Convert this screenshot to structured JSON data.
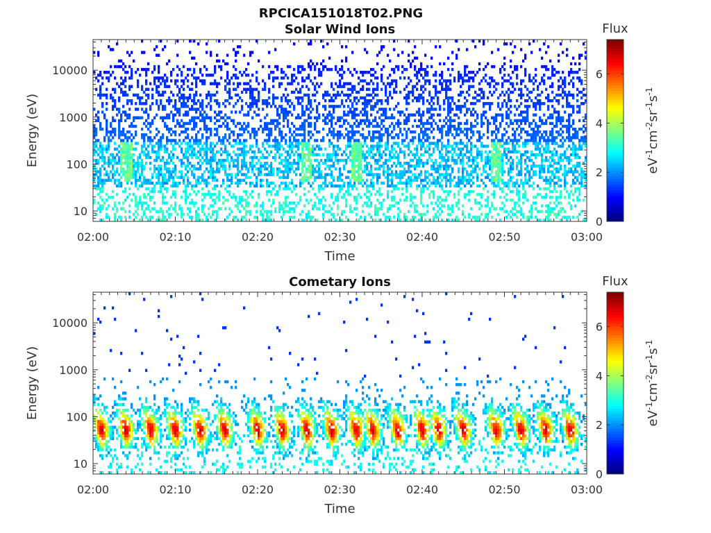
{
  "figure_title": "RPCICA151018T02.PNG",
  "chart_data": [
    {
      "type": "heatmap",
      "title": "Solar Wind Ions",
      "xlabel": "Time",
      "ylabel": "Energy (eV)",
      "x_ticks": [
        "02:00",
        "02:10",
        "02:20",
        "02:30",
        "02:40",
        "02:50",
        "03:00"
      ],
      "x_range": [
        "02:00",
        "03:00"
      ],
      "y_scale": "log",
      "y_ticks": [
        "10",
        "100",
        "1000",
        "10000"
      ],
      "y_range": [
        6,
        45000
      ],
      "colorbar": {
        "label": "Flux",
        "unit": "eV-1cm-2sr-1s-1",
        "unit_parts": [
          "eV",
          "-1",
          "cm",
          "-2",
          "sr",
          "-1",
          "s",
          "-1"
        ],
        "ticks": [
          "0",
          "2",
          "4",
          "6"
        ],
        "range": [
          0,
          7.4
        ],
        "colormap": "jet"
      },
      "description_values": {
        "background_flux_low_energy": 3.0,
        "background_flux_high_energy": 1.2,
        "enhancement_times_min": [
          4,
          26,
          32,
          49
        ],
        "enhancement_peak_flux": 3.8,
        "enhancement_energy_eV": 100
      }
    },
    {
      "type": "heatmap",
      "title": "Cometary Ions",
      "xlabel": "Time",
      "ylabel": "Energy (eV)",
      "x_ticks": [
        "02:00",
        "02:10",
        "02:20",
        "02:30",
        "02:40",
        "02:50",
        "03:00"
      ],
      "x_range": [
        "02:00",
        "03:00"
      ],
      "y_scale": "log",
      "y_ticks": [
        "10",
        "100",
        "1000",
        "10000"
      ],
      "y_range": [
        6,
        45000
      ],
      "colorbar": {
        "label": "Flux",
        "unit": "eV-1cm-2sr-1s-1",
        "unit_parts": [
          "eV",
          "-1",
          "cm",
          "-2",
          "sr",
          "-1",
          "s",
          "-1"
        ],
        "ticks": [
          "0",
          "2",
          "4",
          "6"
        ],
        "range": [
          0,
          7.4
        ],
        "colormap": "jet"
      },
      "description_values": {
        "burst_times_min": [
          1,
          4,
          7,
          10,
          13,
          16,
          20,
          23,
          26,
          29,
          32,
          34,
          37,
          40,
          42,
          45,
          49,
          52,
          55,
          58
        ],
        "burst_peak_flux": 6.0,
        "burst_peak_energy_eV": 60,
        "sporadic_high_energy_flux": 1.3
      }
    }
  ]
}
